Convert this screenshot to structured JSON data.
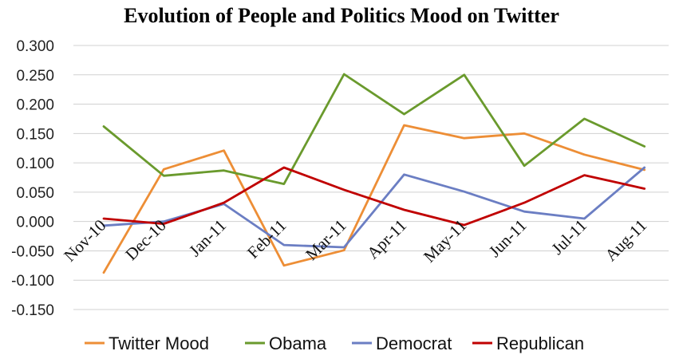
{
  "chart_data": {
    "type": "line",
    "title": "Evolution of People and Politics Mood on Twitter",
    "categories": [
      "Nov-10",
      "Dec-10",
      "Jan-11",
      "Feb-11",
      "Mar-11",
      "Apr-11",
      "May-11",
      "Jun-11",
      "Jul-11",
      "Aug-11"
    ],
    "ylim": [
      -0.15,
      0.3
    ],
    "yticks": [
      "0.300",
      "0.250",
      "0.200",
      "0.150",
      "0.100",
      "0.050",
      "0.000",
      "-0.050",
      "-0.100",
      "-0.150"
    ],
    "grid": true,
    "legend_position": "bottom",
    "series": [
      {
        "name": "Twitter Mood",
        "color": "#ED8E36",
        "values": [
          -0.087,
          0.089,
          0.121,
          -0.075,
          -0.049,
          0.164,
          0.142,
          0.15,
          0.114,
          0.088
        ]
      },
      {
        "name": "Obama",
        "color": "#6A9A2D",
        "values": [
          0.162,
          0.078,
          0.087,
          0.064,
          0.251,
          0.183,
          0.25,
          0.095,
          0.175,
          0.128
        ]
      },
      {
        "name": "Democrat",
        "color": "#6B7EC3",
        "values": [
          -0.007,
          0.0,
          0.03,
          -0.04,
          -0.044,
          0.08,
          0.051,
          0.017,
          0.005,
          0.092
        ]
      },
      {
        "name": "Republican",
        "color": "#C00000",
        "values": [
          0.005,
          -0.004,
          0.032,
          0.092,
          0.054,
          0.02,
          -0.006,
          0.032,
          0.079,
          0.056
        ]
      }
    ]
  }
}
